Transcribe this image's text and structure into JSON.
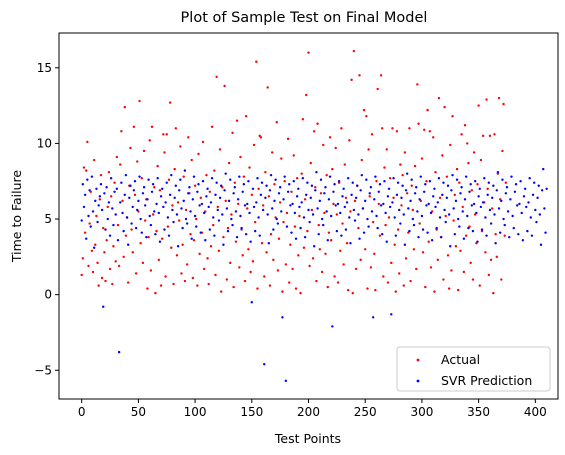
{
  "chart_data": {
    "type": "scatter",
    "title": "Plot of Sample Test on Final Model",
    "xlabel": "Test Points",
    "ylabel": "Time to Failure",
    "xlim": [
      -20,
      420
    ],
    "ylim": [
      -6.9,
      17.3
    ],
    "xticks": [
      0,
      50,
      100,
      150,
      200,
      250,
      300,
      350,
      400
    ],
    "yticks": [
      -5,
      0,
      5,
      10,
      15
    ],
    "grid": false,
    "legend_position": "lower-right",
    "series": [
      {
        "name": "Actual",
        "color": "#ff0000",
        "marker_size": 1.2,
        "y": [
          1.3,
          2.4,
          8.4,
          4.1,
          8.2,
          10.1,
          1.9,
          4.7,
          6.8,
          2.9,
          1.5,
          8.9,
          3.3,
          5.2,
          2.1,
          0.6,
          6.3,
          7.9,
          1.1,
          4.4,
          2.8,
          0.9,
          3.6,
          5.8,
          8.1,
          1.7,
          6.5,
          0.7,
          3.2,
          7.4,
          2.2,
          9.1,
          4.6,
          1.9,
          8.6,
          10.8,
          6.2,
          2.5,
          12.4,
          3.9,
          5.1,
          0.8,
          7.2,
          9.7,
          4.3,
          2.8,
          11.1,
          6.6,
          1.4,
          8.8,
          5.5,
          12.8,
          3.4,
          7.7,
          2.1,
          9.5,
          4.9,
          6.3,
          0.4,
          3.8,
          10.2,
          1.6,
          11.1,
          5.3,
          7.1,
          0.1,
          4.2,
          8.5,
          2.3,
          6.9,
          0.6,
          3.7,
          10.6,
          9.4,
          1.2,
          10.6,
          4.5,
          7.6,
          12.7,
          3.1,
          5.9,
          0.7,
          8.3,
          11.0,
          2.6,
          6.1,
          4.9,
          9.8,
          1.4,
          3.3,
          7.8,
          0.9,
          5.6,
          2.0,
          10.4,
          6.7,
          4.0,
          8.9,
          1.1,
          3.6,
          7.2,
          5.0,
          0.6,
          9.3,
          2.7,
          6.4,
          4.1,
          10.1,
          1.7,
          5.5,
          7.9,
          2.4,
          0.7,
          6.8,
          3.2,
          11.1,
          4.6,
          8.2,
          1.3,
          14.4,
          5.8,
          2.9,
          9.6,
          0.2,
          7.1,
          3.8,
          13.8,
          6.2,
          1.0,
          4.4,
          8.7,
          2.1,
          5.3,
          10.7,
          0.5,
          7.4,
          3.5,
          11.5,
          6.0,
          1.8,
          9.1,
          4.3,
          2.6,
          7.8,
          0.9,
          11.8,
          5.7,
          3.0,
          8.4,
          1.5,
          6.6,
          2.2,
          9.9,
          4.8,
          15.4,
          0.4,
          7.0,
          10.5,
          10.4,
          3.4,
          5.9,
          1.2,
          8.1,
          2.8,
          13.7,
          6.5,
          0.6,
          4.0,
          9.4,
          2.3,
          7.3,
          5.1,
          11.4,
          1.6,
          3.7,
          6.1,
          9.0,
          0.2,
          4.8,
          7.5,
          2.0,
          5.4,
          10.3,
          0.8,
          3.3,
          6.8,
          1.7,
          9.2,
          4.5,
          0.4,
          7.7,
          2.6,
          5.2,
          0.1,
          8.0,
          11.6,
          3.1,
          6.3,
          13.2,
          4.2,
          16.0,
          1.9,
          8.7,
          5.6,
          2.4,
          10.8,
          7.1,
          0.9,
          11.3,
          4.6,
          3.0,
          6.7,
          1.5,
          9.9,
          5.4,
          2.7,
          7.9,
          0.5,
          4.1,
          10.4,
          3.6,
          8.3,
          6.0,
          1.2,
          9.7,
          5.3,
          0.8,
          7.4,
          2.9,
          11.0,
          4.7,
          2.0,
          8.6,
          6.4,
          3.4,
          0.3,
          10.2,
          5.5,
          14.2,
          0.1,
          16.1,
          6.2,
          1.7,
          7.2,
          4.4,
          14.5,
          2.3,
          8.9,
          5.7,
          12.2,
          3.0,
          11.8,
          0.4,
          9.6,
          6.5,
          1.8,
          10.6,
          4.8,
          2.7,
          0.3,
          7.5,
          13.6,
          6.0,
          3.9,
          14.5,
          11.0,
          1.2,
          8.4,
          4.6,
          9.6,
          0.8,
          5.1,
          7.7,
          2.1,
          11.0,
          6.4,
          3.3,
          0.2,
          10.8,
          4.3,
          1.4,
          8.6,
          5.9,
          7.9,
          0.6,
          9.4,
          2.4,
          6.7,
          4.1,
          11.0,
          0.9,
          7.2,
          5.6,
          3.0,
          8.5,
          1.7,
          13.9,
          11.3,
          4.7,
          6.2,
          9.0,
          2.8,
          10.9,
          0.5,
          7.5,
          12.2,
          3.5,
          10.8,
          1.8,
          5.5,
          10.4,
          0.2,
          8.1,
          4.3,
          2.3,
          13.0,
          6.4,
          3.8,
          9.2,
          1.0,
          12.4,
          5.2,
          7.8,
          2.6,
          0.4,
          9.9,
          1.6,
          11.8,
          4.9,
          6.6,
          3.2,
          8.3,
          0.3,
          7.4,
          2.9,
          10.6,
          5.8,
          1.5,
          11.2,
          3.9,
          10.0,
          8.7,
          4.5,
          2.1,
          6.9,
          1.0,
          9.4,
          5.3,
          3.4,
          7.3,
          12.5,
          0.6,
          8.9,
          4.2,
          10.5,
          6.1,
          2.8,
          12.9,
          7.0,
          1.3,
          10.5,
          2.3,
          5.7,
          0.1,
          10.6,
          4.0,
          2.5,
          8.0,
          13.0,
          6.3,
          1.0,
          9.5,
          12.6,
          3.9,
          7.4
        ]
      },
      {
        "name": "SVR Prediction",
        "color": "#0000ff",
        "marker_size": 1.2,
        "y": [
          4.9,
          7.3,
          5.8,
          6.6,
          3.7,
          7.6,
          5.2,
          6.9,
          4.5,
          7.8,
          5.5,
          3.1,
          6.2,
          7.0,
          4.8,
          5.9,
          6.5,
          7.3,
          5.6,
          -0.8,
          6.7,
          4.3,
          7.1,
          5.0,
          6.1,
          3.9,
          7.7,
          5.7,
          4.6,
          6.8,
          5.3,
          7.0,
          3.6,
          -3.8,
          6.1,
          7.4,
          5.4,
          4.2,
          6.6,
          7.9,
          5.1,
          3.3,
          6.4,
          7.2,
          4.7,
          5.8,
          6.9,
          7.5,
          4.4,
          5.6,
          6.2,
          7.8,
          5.0,
          4.1,
          6.7,
          7.1,
          5.9,
          3.8,
          6.3,
          7.6,
          5.2,
          4.6,
          6.8,
          7.3,
          5.5,
          4.0,
          6.0,
          7.7,
          5.4,
          3.5,
          6.5,
          7.0,
          5.8,
          4.3,
          6.1,
          7.4,
          5.1,
          3.9,
          6.6,
          7.9,
          5.6,
          4.8,
          6.4,
          7.2,
          5.3,
          3.2,
          6.9,
          7.6,
          5.7,
          4.4,
          6.2,
          8.2,
          5.0,
          4.7,
          6.7,
          7.1,
          5.5,
          3.7,
          6.3,
          7.8,
          5.2,
          4.5,
          6.8,
          7.3,
          5.9,
          4.1,
          6.0,
          7.5,
          5.4,
          3.6,
          6.5,
          7.0,
          5.8,
          4.3,
          6.1,
          7.7,
          5.1,
          3.9,
          6.6,
          7.4,
          5.6,
          4.9,
          6.4,
          7.2,
          5.3,
          3.3,
          6.9,
          8.0,
          5.7,
          4.2,
          6.2,
          7.6,
          5.0,
          4.6,
          6.7,
          7.1,
          5.5,
          3.8,
          6.3,
          7.8,
          5.2,
          4.4,
          6.8,
          7.3,
          5.9,
          4.0,
          6.0,
          7.5,
          5.4,
          3.5,
          -0.5,
          7.0,
          5.8,
          4.2,
          6.1,
          7.7,
          5.1,
          3.9,
          6.6,
          7.4,
          5.6,
          -4.6,
          6.4,
          7.2,
          5.3,
          3.4,
          6.9,
          7.9,
          5.7,
          4.3,
          6.2,
          7.6,
          5.0,
          4.7,
          6.7,
          7.1,
          5.5,
          -1.5,
          6.3,
          7.8,
          -5.7,
          4.5,
          6.8,
          7.3,
          5.9,
          4.1,
          6.0,
          7.5,
          5.4,
          3.7,
          6.5,
          7.0,
          5.8,
          4.4,
          6.1,
          7.7,
          5.1,
          3.8,
          6.6,
          7.4,
          5.6,
          4.8,
          6.4,
          7.2,
          5.3,
          3.2,
          6.9,
          8.1,
          5.7,
          4.0,
          6.2,
          7.6,
          5.0,
          4.6,
          6.7,
          7.1,
          5.5,
          3.6,
          6.3,
          7.8,
          5.2,
          -2.1,
          6.8,
          7.3,
          5.9,
          4.2,
          6.0,
          7.5,
          5.4,
          3.9,
          6.5,
          7.0,
          5.8,
          4.3,
          6.1,
          7.7,
          5.1,
          3.4,
          6.6,
          7.4,
          5.6,
          4.9,
          6.4,
          7.2,
          5.3,
          3.7,
          6.9,
          7.9,
          5.7,
          4.1,
          6.2,
          7.6,
          5.0,
          4.5,
          6.7,
          7.1,
          5.5,
          -1.5,
          6.3,
          7.8,
          5.2,
          4.4,
          6.8,
          7.3,
          5.9,
          4.0,
          6.0,
          7.5,
          5.4,
          3.5,
          6.5,
          7.0,
          5.8,
          -1.3,
          6.1,
          7.7,
          5.1,
          3.9,
          6.6,
          7.4,
          5.6,
          4.7,
          6.4,
          7.2,
          5.3,
          3.3,
          6.9,
          8.0,
          5.7,
          4.2,
          6.2,
          7.6,
          5.0,
          4.6,
          6.7,
          7.1,
          5.5,
          3.8,
          6.3,
          7.8,
          5.2,
          4.3,
          6.8,
          7.3,
          5.9,
          4.1,
          6.0,
          7.5,
          5.4,
          3.6,
          6.5,
          7.0,
          5.8,
          4.4,
          6.1,
          7.7,
          5.1,
          3.8,
          6.6,
          7.4,
          5.6,
          4.8,
          6.4,
          7.2,
          5.3,
          3.2,
          6.9,
          7.9,
          5.7,
          4.0,
          6.2,
          7.6,
          5.0,
          4.5,
          6.7,
          7.1,
          5.5,
          3.7,
          6.3,
          7.8,
          5.2,
          4.4,
          6.8,
          7.3,
          5.9,
          4.2,
          6.0,
          7.5,
          5.4,
          3.5,
          6.5,
          7.0,
          5.8,
          4.3,
          6.1,
          7.7,
          5.1,
          3.9,
          6.6,
          7.4,
          5.6,
          4.7,
          6.4,
          7.2,
          5.3,
          3.4,
          6.9,
          8.1,
          5.7,
          4.1,
          6.2,
          7.6,
          5.0,
          4.6,
          6.7,
          7.1,
          5.5,
          3.8,
          6.3,
          7.8,
          5.2,
          4.4,
          6.8,
          7.3,
          5.9,
          4.0,
          6.0,
          7.5,
          5.4,
          3.6,
          6.5,
          7.0,
          5.8,
          4.2,
          6.1,
          7.7,
          5.1,
          3.9,
          6.6,
          7.4,
          5.6,
          4.8,
          6.4,
          7.2,
          5.3,
          3.3,
          6.9,
          8.3,
          5.7,
          4.1,
          7.0
        ]
      }
    ]
  }
}
